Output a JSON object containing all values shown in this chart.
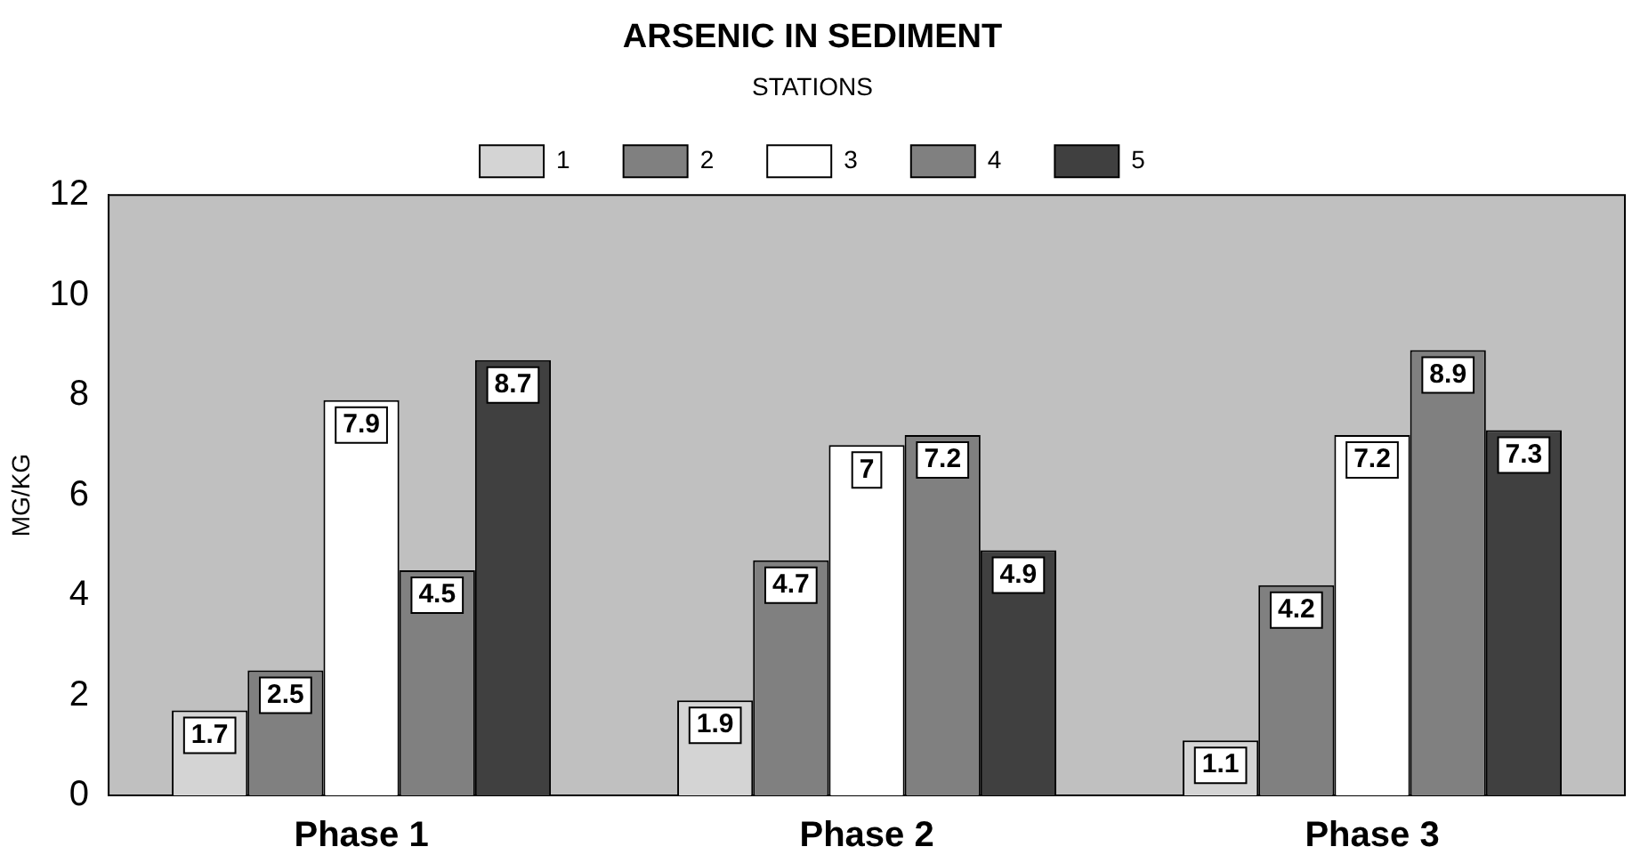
{
  "chart_data": {
    "type": "bar",
    "title": "ARSENIC IN SEDIMENT",
    "ylabel": "MG/KG",
    "legend_title": "STATIONS",
    "categories": [
      "Phase 1",
      "Phase 2",
      "Phase 3"
    ],
    "series": [
      {
        "name": "1",
        "color": "#d4d4d4",
        "values": [
          1.7,
          1.9,
          1.1
        ]
      },
      {
        "name": "2",
        "color": "#808080",
        "values": [
          2.5,
          4.7,
          4.2
        ]
      },
      {
        "name": "3",
        "color": "#ffffff",
        "values": [
          7.9,
          7,
          7.2
        ]
      },
      {
        "name": "4",
        "color": "#808080",
        "values": [
          4.5,
          7.2,
          8.9
        ]
      },
      {
        "name": "5",
        "color": "#404040",
        "values": [
          8.7,
          4.9,
          7.3
        ]
      }
    ],
    "ylim": [
      0,
      12
    ],
    "yticks": [
      0,
      2,
      4,
      6,
      8,
      10,
      12
    ],
    "grid": false,
    "legend": "top",
    "data_labels": true
  }
}
